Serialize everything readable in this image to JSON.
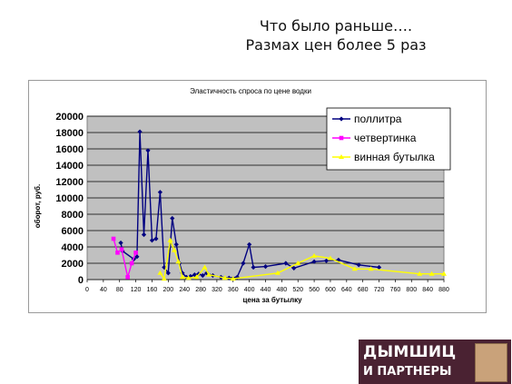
{
  "slide": {
    "title_line1": "Что было раньше….",
    "title_line2": "Размах цен более 5 раз"
  },
  "logo": {
    "line1": "ДЫМШИЦ",
    "line2": "И ПАРТНЕРЫ"
  },
  "chart_data": {
    "type": "line",
    "title": "Эластичность спроса по цене водки",
    "xlabel": "цена за бутылку",
    "ylabel": "оборот, руб.",
    "xlim": [
      0,
      880
    ],
    "ylim": [
      0,
      20000
    ],
    "x_ticks": [
      0,
      40,
      80,
      120,
      160,
      200,
      240,
      280,
      320,
      360,
      400,
      440,
      480,
      520,
      560,
      600,
      640,
      680,
      720,
      760,
      800,
      840,
      880
    ],
    "y_ticks": [
      0,
      2000,
      4000,
      6000,
      8000,
      10000,
      12000,
      14000,
      16000,
      18000,
      20000
    ],
    "grid": "horizontal",
    "plot_background": "#c0c0c0",
    "legend_position": "top-right",
    "series": [
      {
        "name": "поллитра",
        "color": "#000080",
        "marker": "diamond",
        "points": [
          [
            83,
            4500
          ],
          [
            87,
            3500
          ],
          [
            115,
            2500
          ],
          [
            123,
            2800
          ],
          [
            130,
            18100
          ],
          [
            140,
            5500
          ],
          [
            150,
            15800
          ],
          [
            160,
            4800
          ],
          [
            170,
            5000
          ],
          [
            180,
            10700
          ],
          [
            190,
            1500
          ],
          [
            200,
            800
          ],
          [
            210,
            7500
          ],
          [
            220,
            4300
          ],
          [
            228,
            2000
          ],
          [
            235,
            800
          ],
          [
            245,
            300
          ],
          [
            255,
            400
          ],
          [
            265,
            600
          ],
          [
            275,
            700
          ],
          [
            285,
            500
          ],
          [
            295,
            800
          ],
          [
            310,
            500
          ],
          [
            330,
            300
          ],
          [
            350,
            200
          ],
          [
            370,
            300
          ],
          [
            385,
            2000
          ],
          [
            400,
            4300
          ],
          [
            410,
            1500
          ],
          [
            440,
            1600
          ],
          [
            490,
            2000
          ],
          [
            510,
            1400
          ],
          [
            560,
            2200
          ],
          [
            590,
            2300
          ],
          [
            620,
            2400
          ],
          [
            670,
            1800
          ],
          [
            720,
            1500
          ]
        ]
      },
      {
        "name": "четвертинка",
        "color": "#ff00ff",
        "marker": "square",
        "points": [
          [
            65,
            5000
          ],
          [
            75,
            3300
          ],
          [
            85,
            3700
          ],
          [
            100,
            300
          ],
          [
            110,
            2000
          ],
          [
            120,
            3300
          ]
        ]
      },
      {
        "name": "винная бутылка",
        "color": "#ffff00",
        "marker": "triangle",
        "points": [
          [
            180,
            800
          ],
          [
            190,
            100
          ],
          [
            205,
            4800
          ],
          [
            215,
            3600
          ],
          [
            225,
            2200
          ],
          [
            235,
            300
          ],
          [
            250,
            200
          ],
          [
            270,
            300
          ],
          [
            290,
            1500
          ],
          [
            300,
            600
          ],
          [
            340,
            200
          ],
          [
            360,
            100
          ],
          [
            470,
            800
          ],
          [
            520,
            2000
          ],
          [
            560,
            2900
          ],
          [
            600,
            2600
          ],
          [
            660,
            1300
          ],
          [
            700,
            1300
          ],
          [
            820,
            700
          ],
          [
            850,
            700
          ],
          [
            880,
            700
          ]
        ]
      }
    ]
  }
}
